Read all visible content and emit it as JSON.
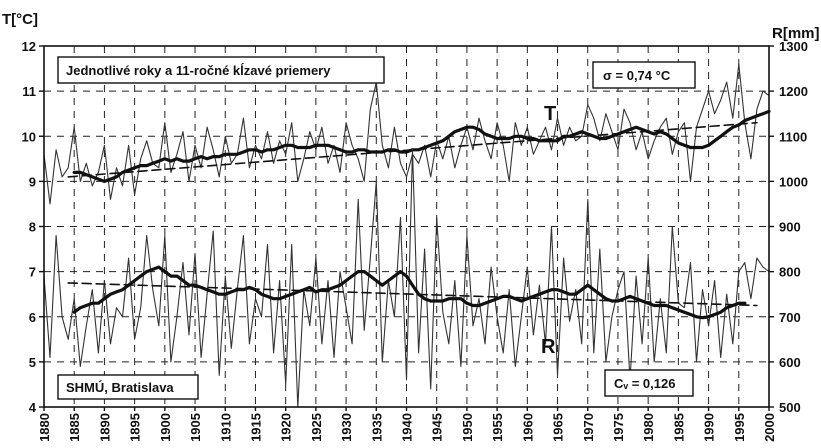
{
  "chart_data": {
    "type": "line",
    "x_range": [
      1880,
      2000
    ],
    "grid": true,
    "left_axis": {
      "label": "T[°C]",
      "ylim": [
        4,
        12
      ],
      "ticks": [
        "4",
        "5",
        "6",
        "7",
        "8",
        "9",
        "10",
        "11",
        "12"
      ]
    },
    "right_axis": {
      "label": "R[mm]",
      "ylim": [
        500,
        1300
      ],
      "ticks": [
        "500",
        "600",
        "700",
        "800",
        "900",
        "1000",
        "1100",
        "1200",
        "1300"
      ]
    },
    "x_ticks": [
      "1880",
      "1885",
      "1890",
      "1895",
      "1900",
      "1905",
      "1910",
      "1915",
      "1920",
      "1925",
      "1930",
      "1935",
      "1940",
      "1945",
      "1950",
      "1955",
      "1960",
      "1965",
      "1970",
      "1975",
      "1980",
      "1985",
      "1990",
      "1995",
      "2000"
    ],
    "annotations": {
      "title_box": "Jednotlivé roky a 11-ročné kĺzavé priemery",
      "sigma_box": "σ = 0,74 °C",
      "source_box": "SHMÚ, Bratislava",
      "cv_box": "Cᵥ = 0,126",
      "t_label": "T",
      "r_label": "R"
    },
    "series": [
      {
        "name": "T",
        "axis": "left",
        "style": "annual",
        "start_year": 1880,
        "values": [
          9.6,
          8.5,
          9.7,
          9.1,
          9.3,
          10.2,
          9.0,
          9.4,
          8.9,
          9.2,
          9.8,
          8.6,
          9.3,
          8.9,
          9.8,
          8.7,
          9.5,
          9.9,
          9.4,
          9.3,
          10.3,
          9.2,
          9.6,
          10.1,
          9.0,
          9.8,
          9.3,
          10.2,
          9.7,
          9.1,
          10.0,
          9.4,
          9.6,
          10.4,
          9.3,
          9.8,
          9.5,
          10.1,
          9.4,
          9.9,
          9.6,
          10.3,
          9.0,
          9.5,
          10.1,
          9.7,
          10.2,
          9.4,
          9.8,
          9.2,
          10.3,
          9.8,
          9.5,
          9.0,
          10.6,
          11.2,
          9.8,
          9.3,
          10.2,
          9.4,
          9.1,
          9.6,
          9.4,
          9.8,
          9.1,
          9.9,
          9.5,
          10.0,
          9.3,
          9.8,
          10.2,
          9.7,
          10.4,
          9.9,
          9.5,
          10.3,
          9.8,
          9.0,
          10.3,
          9.8,
          10.2,
          9.6,
          9.9,
          10.2,
          9.7,
          10.4,
          9.8,
          10.2,
          9.9,
          10.0,
          10.7,
          10.4,
          9.9,
          10.5,
          10.1,
          9.7,
          10.6,
          10.3,
          9.7,
          10.1,
          9.5,
          9.9,
          10.2,
          10.4,
          9.6,
          10.1,
          10.3,
          9.0,
          10.2,
          10.6,
          11.0,
          10.5,
          10.8,
          11.2,
          10.4,
          11.6,
          10.3,
          9.5,
          10.6,
          11.0,
          10.9
        ]
      },
      {
        "name": "T",
        "axis": "left",
        "style": "moving_average",
        "start_year": 1885,
        "values": [
          9.2,
          9.2,
          9.15,
          9.1,
          9.05,
          9.0,
          9.05,
          9.1,
          9.2,
          9.25,
          9.3,
          9.35,
          9.35,
          9.4,
          9.45,
          9.5,
          9.45,
          9.5,
          9.45,
          9.45,
          9.5,
          9.55,
          9.5,
          9.55,
          9.55,
          9.6,
          9.6,
          9.6,
          9.65,
          9.7,
          9.7,
          9.65,
          9.7,
          9.7,
          9.75,
          9.8,
          9.8,
          9.75,
          9.75,
          9.75,
          9.8,
          9.8,
          9.8,
          9.75,
          9.7,
          9.65,
          9.65,
          9.7,
          9.7,
          9.65,
          9.65,
          9.65,
          9.7,
          9.7,
          9.65,
          9.65,
          9.7,
          9.7,
          9.75,
          9.8,
          9.85,
          9.9,
          10.0,
          10.1,
          10.15,
          10.2,
          10.2,
          10.15,
          10.05,
          10.0,
          9.95,
          9.95,
          9.95,
          10.0,
          10.0,
          9.95,
          9.95,
          9.9,
          9.9,
          9.9,
          9.9,
          10.0,
          10.0,
          10.05,
          10.1,
          10.05,
          10.0,
          9.95,
          9.95,
          10.0,
          10.05,
          10.1,
          10.15,
          10.2,
          10.15,
          10.1,
          10.05,
          10.1,
          10.05,
          9.95,
          9.85,
          9.8,
          9.75,
          9.75,
          9.75,
          9.8,
          9.9,
          10.0,
          10.1,
          10.2,
          10.25,
          10.35,
          10.4,
          10.45,
          10.5,
          10.55
        ]
      },
      {
        "name": "T",
        "axis": "left",
        "style": "trend",
        "x": [
          1884,
          1998
        ],
        "values": [
          9.1,
          10.3
        ]
      },
      {
        "name": "R",
        "axis": "right",
        "style": "annual",
        "start_year": 1880,
        "values": [
          790,
          610,
          880,
          700,
          650,
          740,
          590,
          680,
          760,
          620,
          780,
          640,
          720,
          700,
          830,
          650,
          720,
          880,
          760,
          680,
          880,
          600,
          700,
          820,
          660,
          840,
          610,
          750,
          890,
          570,
          790,
          630,
          760,
          880,
          640,
          740,
          700,
          860,
          620,
          780,
          550,
          860,
          500,
          760,
          680,
          830,
          640,
          780,
          610,
          800,
          720,
          640,
          960,
          670,
          830,
          1000,
          600,
          780,
          700,
          920,
          560,
          1070,
          620,
          850,
          540,
          920,
          710,
          640,
          780,
          590,
          880,
          680,
          740,
          640,
          810,
          700,
          620,
          760,
          590,
          700,
          810,
          660,
          770,
          640,
          900,
          570,
          830,
          690,
          760,
          640,
          960,
          620,
          850,
          600,
          700,
          760,
          800,
          560,
          790,
          640,
          830,
          600,
          740,
          620,
          900,
          730,
          720,
          820,
          600,
          760,
          680,
          780,
          610,
          750,
          640,
          800,
          820,
          740,
          830,
          810,
          800
        ]
      },
      {
        "name": "R",
        "axis": "right",
        "style": "moving_average",
        "start_year": 1885,
        "values": [
          710,
          720,
          725,
          730,
          730,
          740,
          750,
          755,
          760,
          770,
          780,
          790,
          800,
          805,
          810,
          800,
          790,
          790,
          780,
          770,
          770,
          765,
          760,
          755,
          750,
          750,
          755,
          760,
          760,
          765,
          760,
          750,
          745,
          740,
          740,
          745,
          750,
          755,
          760,
          765,
          755,
          760,
          760,
          765,
          770,
          780,
          790,
          800,
          800,
          790,
          780,
          770,
          780,
          790,
          800,
          790,
          770,
          750,
          740,
          735,
          735,
          735,
          740,
          740,
          740,
          730,
          725,
          725,
          730,
          735,
          740,
          745,
          745,
          740,
          735,
          740,
          745,
          750,
          755,
          760,
          760,
          755,
          750,
          750,
          760,
          770,
          760,
          750,
          740,
          735,
          735,
          740,
          745,
          740,
          735,
          730,
          725,
          725,
          725,
          720,
          715,
          710,
          705,
          700,
          698,
          700,
          705,
          710,
          720,
          725,
          730,
          730
        ]
      },
      {
        "name": "R",
        "axis": "right",
        "style": "trend",
        "x": [
          1884,
          1998
        ],
        "values": [
          775,
          725
        ]
      }
    ]
  }
}
